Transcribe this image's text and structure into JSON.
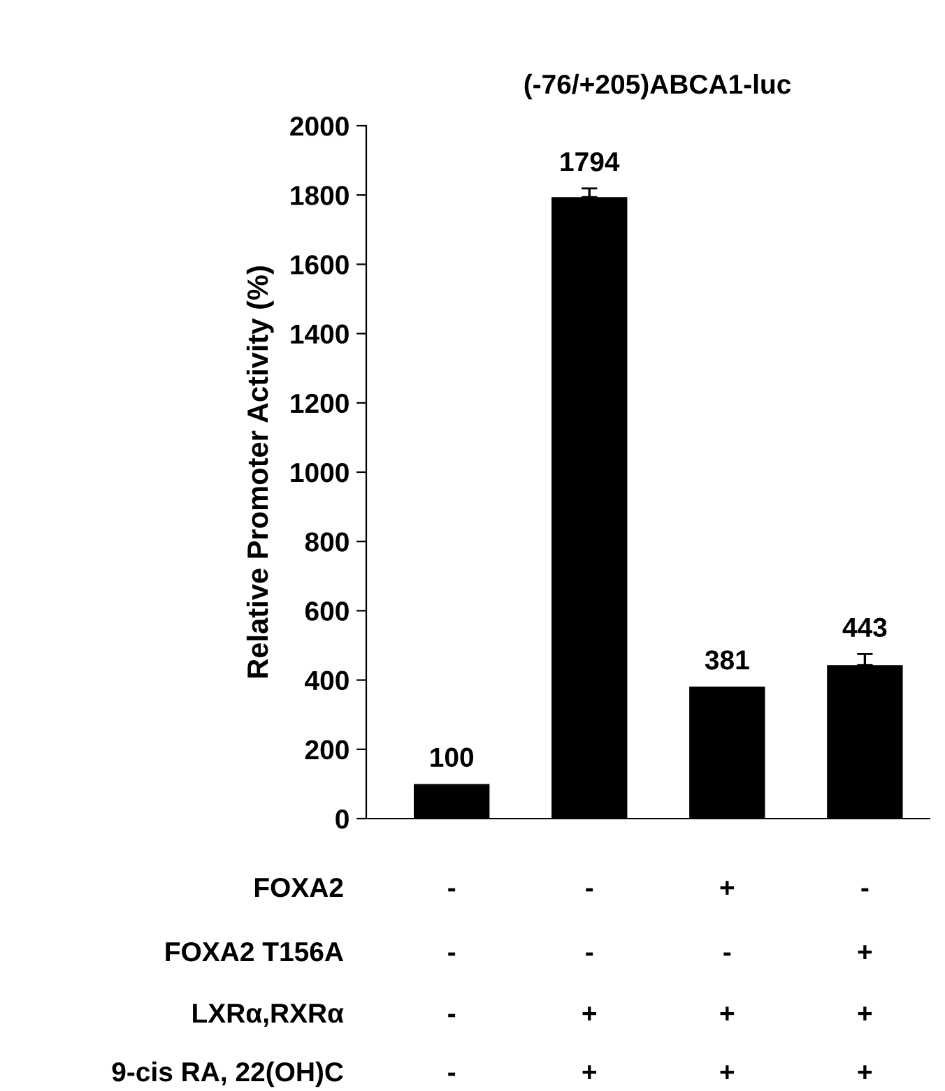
{
  "chart_data": {
    "type": "bar",
    "title": "(-76/+205)ABCA1-luc",
    "ylabel": "Relative Promoter Activity (%)",
    "categories": [
      "-\n-\n-\n-",
      "-\n-\n+\n+",
      "+\n-\n+\n+",
      "-\n+\n+\n+"
    ],
    "values": [
      100,
      1794,
      381,
      443
    ],
    "errors": [
      null,
      25,
      null,
      32
    ],
    "color": "#000000",
    "ylim": [
      0,
      2000
    ],
    "yticks": [
      0,
      200,
      400,
      600,
      800,
      1000,
      1200,
      1400,
      1600,
      1800,
      2000
    ],
    "data_labels": true,
    "grid": false,
    "legend": false,
    "annotations": [
      "FOXA2",
      "FOXA2 T156A",
      "LXRα,RXRα",
      "9-cis RA, 22(OH)C"
    ]
  }
}
